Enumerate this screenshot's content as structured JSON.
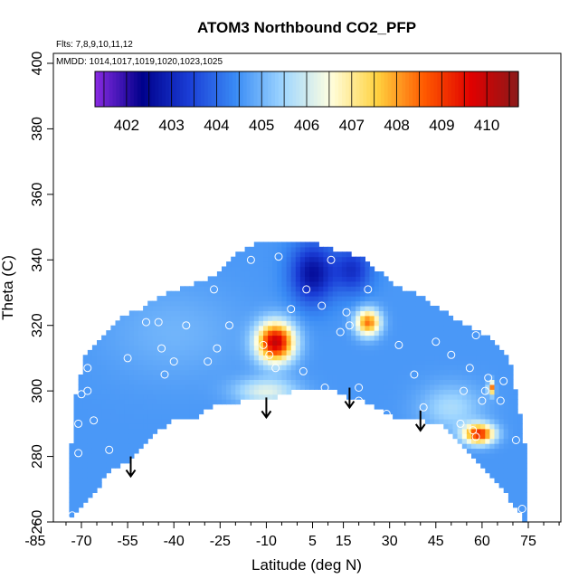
{
  "chart_data": {
    "type": "heatmap",
    "title": "ATOM3 Northbound CO2_PFP",
    "annotations": [
      "Flts: 7,8,9,10,11,12",
      "MMDD: 1014,1017,1019,1020,1023,1025"
    ],
    "xlabel": "Latitude (deg N)",
    "ylabel": "Theta (C)",
    "xlim": [
      -85,
      85
    ],
    "ylim": [
      260,
      405
    ],
    "x_ticks": [
      "-85",
      "-70",
      "-55",
      "-40",
      "-25",
      "-10",
      "5",
      "15",
      "30",
      "45",
      "60",
      "75"
    ],
    "y_ticks": [
      "260",
      "280",
      "300",
      "320",
      "340",
      "360",
      "380",
      "400"
    ],
    "colorbar": {
      "ticks": [
        "402",
        "403",
        "404",
        "405",
        "406",
        "407",
        "408",
        "409",
        "410"
      ],
      "range": [
        401.3,
        410.7
      ],
      "colors": [
        "#8a2be2",
        "#00008b",
        "#1a3dd6",
        "#3a8cf5",
        "#9fd6ff",
        "#ffffe0",
        "#ffd23f",
        "#ff5a00",
        "#e00000",
        "#8b1a1a"
      ]
    },
    "field": {
      "background_co2": 404.6,
      "floor": [
        [
          -74,
          260
        ],
        [
          -67,
          268
        ],
        [
          -60,
          276
        ],
        [
          -53,
          280
        ],
        [
          -46,
          287
        ],
        [
          -40,
          291
        ],
        [
          -33,
          292
        ],
        [
          -26,
          296
        ],
        [
          -17,
          297
        ],
        [
          -10,
          297
        ],
        [
          -2,
          300
        ],
        [
          7,
          300
        ],
        [
          12,
          300
        ],
        [
          17,
          298
        ],
        [
          22,
          297
        ],
        [
          28,
          294
        ],
        [
          34,
          291
        ],
        [
          41,
          291
        ],
        [
          48,
          289
        ],
        [
          55,
          281
        ],
        [
          62,
          275
        ],
        [
          68,
          268
        ],
        [
          74,
          260
        ]
      ],
      "ceiling": [
        [
          -74,
          276
        ],
        [
          -72,
          298
        ],
        [
          -69,
          311
        ],
        [
          -64,
          316
        ],
        [
          -58,
          322
        ],
        [
          -51,
          325
        ],
        [
          -44,
          329
        ],
        [
          -38,
          331
        ],
        [
          -30,
          334
        ],
        [
          -24,
          337
        ],
        [
          -18,
          343
        ],
        [
          -12,
          346
        ],
        [
          -5,
          346
        ],
        [
          0,
          346
        ],
        [
          7,
          345
        ],
        [
          12,
          343
        ],
        [
          17,
          342
        ],
        [
          22,
          340
        ],
        [
          27,
          336
        ],
        [
          32,
          332
        ],
        [
          38,
          330
        ],
        [
          43,
          327
        ],
        [
          48,
          324
        ],
        [
          53,
          321
        ],
        [
          59,
          318
        ],
        [
          64,
          315
        ],
        [
          69,
          310
        ],
        [
          74,
          283
        ]
      ],
      "features": [
        {
          "lat": -7,
          "theta": 315,
          "r_lat": 6,
          "r_theta": 6,
          "co2": 410.0
        },
        {
          "lat": 23,
          "theta": 321,
          "r_lat": 4,
          "r_theta": 4,
          "co2": 408.4
        },
        {
          "lat": 59,
          "theta": 287,
          "r_lat": 5,
          "r_theta": 3,
          "co2": 409.2
        },
        {
          "lat": 63,
          "theta": 301,
          "r_lat": 1,
          "r_theta": 2,
          "co2": 408.5
        },
        {
          "lat": 5,
          "theta": 336,
          "r_lat": 7,
          "r_theta": 9,
          "co2": 402.6
        },
        {
          "lat": 18,
          "theta": 337,
          "r_lat": 6,
          "r_theta": 7,
          "co2": 403.2
        },
        {
          "lat": -10,
          "theta": 300,
          "r_lat": 10,
          "r_theta": 4,
          "co2": 406.2
        },
        {
          "lat": 50,
          "theta": 295,
          "r_lat": 10,
          "r_theta": 7,
          "co2": 405.6
        },
        {
          "lat": -40,
          "theta": 318,
          "r_lat": 22,
          "r_theta": 14,
          "co2": 405.0
        }
      ]
    },
    "samples": [
      [
        -73,
        262
      ],
      [
        -71,
        281
      ],
      [
        -71,
        290
      ],
      [
        -70,
        299
      ],
      [
        -68,
        307
      ],
      [
        -68,
        300
      ],
      [
        -66,
        291
      ],
      [
        -61,
        282
      ],
      [
        -56,
        270
      ],
      [
        -55,
        310
      ],
      [
        -49,
        321
      ],
      [
        -45,
        321
      ],
      [
        -44,
        313
      ],
      [
        -43,
        305
      ],
      [
        -40,
        309
      ],
      [
        -36,
        320
      ],
      [
        -33,
        288
      ],
      [
        -29,
        309
      ],
      [
        -26,
        313
      ],
      [
        -22,
        320
      ],
      [
        -20,
        292
      ],
      [
        -19,
        288
      ],
      [
        -17,
        291
      ],
      [
        -15,
        340
      ],
      [
        -11,
        314
      ],
      [
        -6,
        341
      ],
      [
        -2,
        325
      ],
      [
        3,
        331
      ],
      [
        8,
        326
      ],
      [
        9,
        301
      ],
      [
        14,
        318
      ],
      [
        17,
        320
      ],
      [
        20,
        301
      ],
      [
        20,
        297
      ],
      [
        23,
        331
      ],
      [
        29,
        293
      ],
      [
        36,
        286
      ],
      [
        41,
        295
      ],
      [
        48,
        286
      ],
      [
        53,
        290
      ],
      [
        56,
        307
      ],
      [
        58,
        317
      ],
      [
        60,
        297
      ],
      [
        61,
        300
      ],
      [
        62,
        304
      ],
      [
        67,
        303
      ],
      [
        71,
        285
      ],
      [
        73,
        264
      ],
      [
        57,
        288
      ],
      [
        58,
        286
      ],
      [
        -62,
        323
      ],
      [
        -56,
        327
      ],
      [
        -66,
        317
      ],
      [
        45,
        315
      ],
      [
        50,
        311
      ],
      [
        -7,
        307
      ],
      [
        -9,
        311
      ],
      [
        16,
        324
      ],
      [
        -47,
        334
      ],
      [
        2,
        306
      ],
      [
        33,
        314
      ],
      [
        66,
        297
      ],
      [
        54,
        300
      ],
      [
        38,
        305
      ],
      [
        11,
        340
      ],
      [
        -27,
        331
      ]
    ],
    "arrows": [
      [
        -54,
        280
      ],
      [
        -10,
        298
      ],
      [
        17,
        301
      ],
      [
        40,
        294
      ]
    ]
  }
}
